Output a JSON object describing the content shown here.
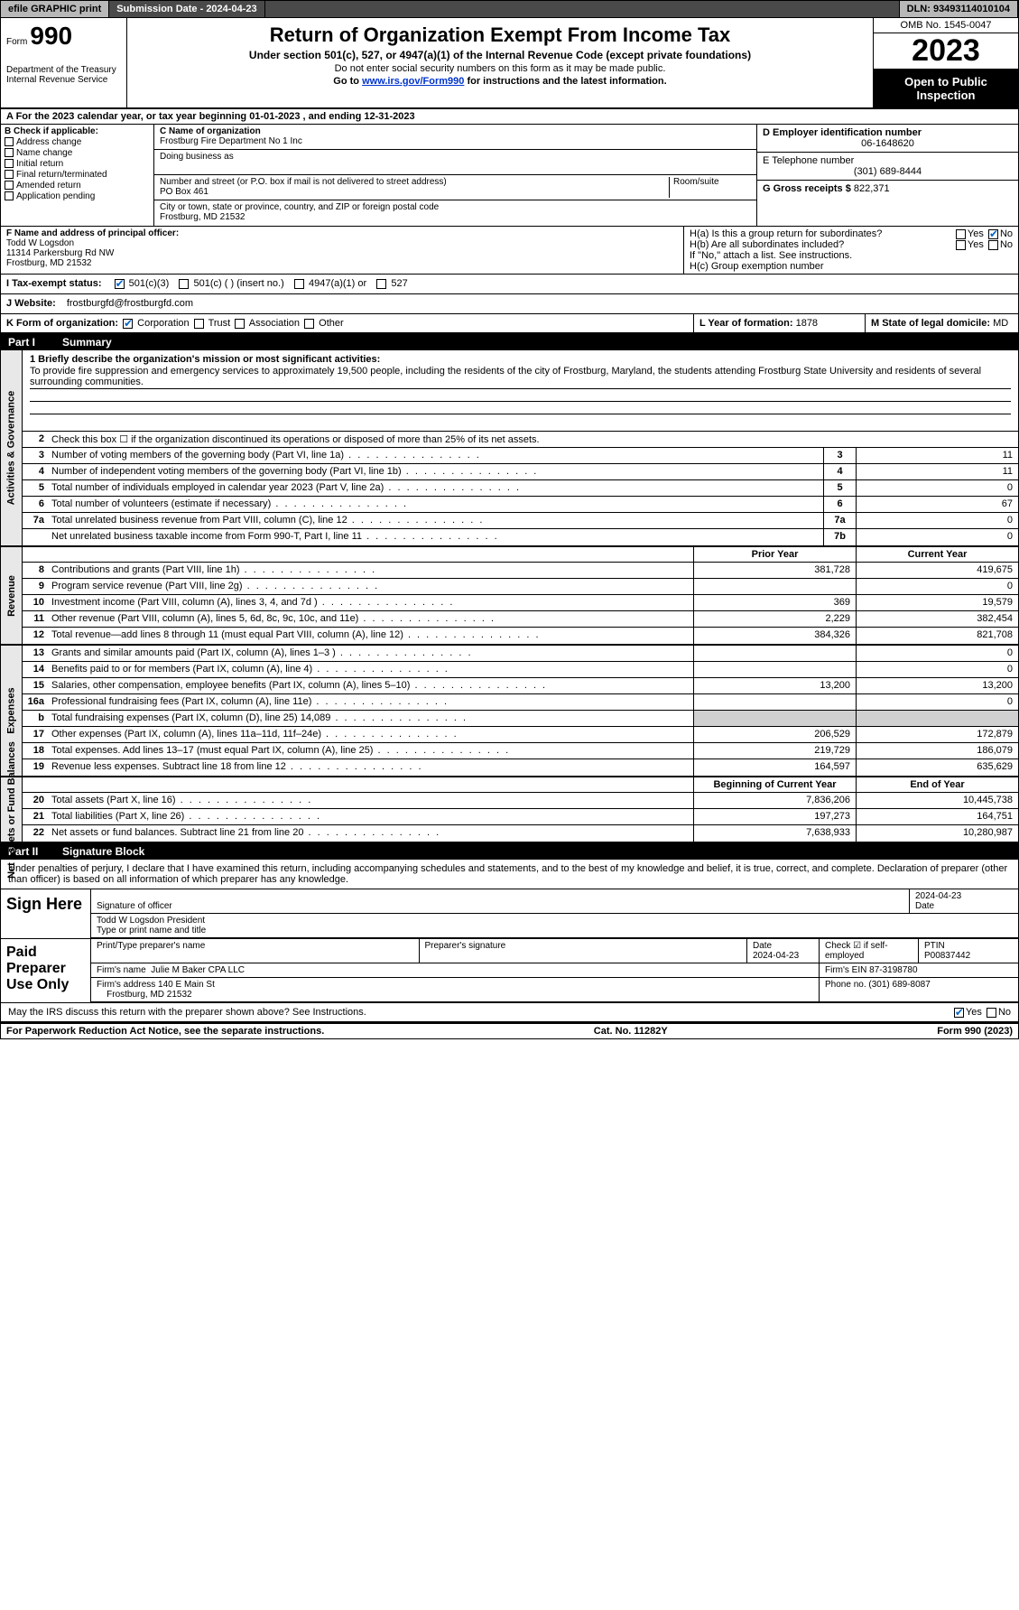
{
  "topbar": {
    "efile": "efile GRAPHIC print",
    "submission": "Submission Date - 2024-04-23",
    "dln": "DLN: 93493114010104"
  },
  "header": {
    "form_label": "Form",
    "form_num": "990",
    "dept": "Department of the Treasury\nInternal Revenue Service",
    "title": "Return of Organization Exempt From Income Tax",
    "sub1": "Under section 501(c), 527, or 4947(a)(1) of the Internal Revenue Code (except private foundations)",
    "sub2": "Do not enter social security numbers on this form as it may be made public.",
    "sub3_pre": "Go to ",
    "sub3_link": "www.irs.gov/Form990",
    "sub3_post": " for instructions and the latest information.",
    "omb": "OMB No. 1545-0047",
    "year": "2023",
    "open": "Open to Public Inspection"
  },
  "row_a": "A For the 2023 calendar year, or tax year beginning 01-01-2023    , and ending 12-31-2023",
  "col_b": {
    "title": "B Check if applicable:",
    "items": [
      "Address change",
      "Name change",
      "Initial return",
      "Final return/terminated",
      "Amended return",
      "Application pending"
    ]
  },
  "org": {
    "c_label": "C Name of organization",
    "name": "Frostburg Fire Department No 1 Inc",
    "dba_label": "Doing business as",
    "dba": "",
    "addr_label": "Number and street (or P.O. box if mail is not delivered to street address)",
    "addr": "PO Box 461",
    "room_label": "Room/suite",
    "city_label": "City or town, state or province, country, and ZIP or foreign postal code",
    "city": "Frostburg, MD  21532"
  },
  "right_boxes": {
    "d_label": "D Employer identification number",
    "ein": "06-1648620",
    "e_label": "E Telephone number",
    "phone": "(301) 689-8444",
    "g_label": "G Gross receipts $",
    "gross": "822,371"
  },
  "officer": {
    "f_label": "F Name and address of principal officer:",
    "name": "Todd W Logsdon",
    "addr1": "11314 Parkersburg Rd NW",
    "addr2": "Frostburg, MD  21532"
  },
  "h_section": {
    "ha": "H(a) Is this a group return for subordinates?",
    "hb": "H(b) Are all subordinates included?",
    "hb_note": "If \"No,\" attach a list. See instructions.",
    "hc": "H(c) Group exemption number",
    "yes": "Yes",
    "no": "No"
  },
  "status": {
    "i_label": "I  Tax-exempt status:",
    "opts": [
      "501(c)(3)",
      "501(c) (  ) (insert no.)",
      "4947(a)(1) or",
      "527"
    ],
    "j_label": "J  Website:",
    "website": "frostburgfd@frostburgfd.com"
  },
  "k_row": {
    "k_label": "K Form of organization:",
    "opts": [
      "Corporation",
      "Trust",
      "Association",
      "Other"
    ],
    "l_label": "L Year of formation:",
    "l_val": "1878",
    "m_label": "M State of legal domicile:",
    "m_val": "MD"
  },
  "part1": {
    "title": "Part I",
    "name": "Summary",
    "q1_label": "1  Briefly describe the organization's mission or most significant activities:",
    "mission": "To provide fire suppression and emergency services to approximately 19,500 people, including the residents of the city of Frostburg, Maryland, the students attending Frostburg State University and residents of several surrounding communities.",
    "q2": "Check this box ☐ if the organization discontinued its operations or disposed of more than 25% of its net assets.",
    "sections": {
      "activities": "Activities & Governance",
      "revenue": "Revenue",
      "expenses": "Expenses",
      "net": "Net Assets or Fund Balances"
    },
    "lines_act": [
      {
        "n": "3",
        "d": "Number of voting members of the governing body (Part VI, line 1a)",
        "box": "3",
        "v": "11"
      },
      {
        "n": "4",
        "d": "Number of independent voting members of the governing body (Part VI, line 1b)",
        "box": "4",
        "v": "11"
      },
      {
        "n": "5",
        "d": "Total number of individuals employed in calendar year 2023 (Part V, line 2a)",
        "box": "5",
        "v": "0"
      },
      {
        "n": "6",
        "d": "Total number of volunteers (estimate if necessary)",
        "box": "6",
        "v": "67"
      },
      {
        "n": "7a",
        "d": "Total unrelated business revenue from Part VIII, column (C), line 12",
        "box": "7a",
        "v": "0"
      },
      {
        "n": "",
        "d": "Net unrelated business taxable income from Form 990-T, Part I, line 11",
        "box": "7b",
        "v": "0"
      }
    ],
    "col_hdrs": {
      "prior": "Prior Year",
      "current": "Current Year",
      "begin": "Beginning of Current Year",
      "end": "End of Year"
    },
    "lines_rev": [
      {
        "n": "8",
        "d": "Contributions and grants (Part VIII, line 1h)",
        "p": "381,728",
        "c": "419,675"
      },
      {
        "n": "9",
        "d": "Program service revenue (Part VIII, line 2g)",
        "p": "",
        "c": "0"
      },
      {
        "n": "10",
        "d": "Investment income (Part VIII, column (A), lines 3, 4, and 7d )",
        "p": "369",
        "c": "19,579"
      },
      {
        "n": "11",
        "d": "Other revenue (Part VIII, column (A), lines 5, 6d, 8c, 9c, 10c, and 11e)",
        "p": "2,229",
        "c": "382,454"
      },
      {
        "n": "12",
        "d": "Total revenue—add lines 8 through 11 (must equal Part VIII, column (A), line 12)",
        "p": "384,326",
        "c": "821,708"
      }
    ],
    "lines_exp": [
      {
        "n": "13",
        "d": "Grants and similar amounts paid (Part IX, column (A), lines 1–3 )",
        "p": "",
        "c": "0"
      },
      {
        "n": "14",
        "d": "Benefits paid to or for members (Part IX, column (A), line 4)",
        "p": "",
        "c": "0"
      },
      {
        "n": "15",
        "d": "Salaries, other compensation, employee benefits (Part IX, column (A), lines 5–10)",
        "p": "13,200",
        "c": "13,200"
      },
      {
        "n": "16a",
        "d": "Professional fundraising fees (Part IX, column (A), line 11e)",
        "p": "",
        "c": "0"
      },
      {
        "n": "b",
        "d": "Total fundraising expenses (Part IX, column (D), line 25) 14,089",
        "p": "gray",
        "c": "gray"
      },
      {
        "n": "17",
        "d": "Other expenses (Part IX, column (A), lines 11a–11d, 11f–24e)",
        "p": "206,529",
        "c": "172,879"
      },
      {
        "n": "18",
        "d": "Total expenses. Add lines 13–17 (must equal Part IX, column (A), line 25)",
        "p": "219,729",
        "c": "186,079"
      },
      {
        "n": "19",
        "d": "Revenue less expenses. Subtract line 18 from line 12",
        "p": "164,597",
        "c": "635,629"
      }
    ],
    "lines_net": [
      {
        "n": "20",
        "d": "Total assets (Part X, line 16)",
        "p": "7,836,206",
        "c": "10,445,738"
      },
      {
        "n": "21",
        "d": "Total liabilities (Part X, line 26)",
        "p": "197,273",
        "c": "164,751"
      },
      {
        "n": "22",
        "d": "Net assets or fund balances. Subtract line 21 from line 20",
        "p": "7,638,933",
        "c": "10,280,987"
      }
    ]
  },
  "part2": {
    "title": "Part II",
    "name": "Signature Block",
    "declaration": "Under penalties of perjury, I declare that I have examined this return, including accompanying schedules and statements, and to the best of my knowledge and belief, it is true, correct, and complete. Declaration of preparer (other than officer) is based on all information of which preparer has any knowledge.",
    "sign_here": "Sign Here",
    "sig_officer": "Signature of officer",
    "sig_date": "2024-04-23",
    "officer_name": "Todd W Logsdon  President",
    "type_name": "Type or print name and title",
    "date_lbl": "Date",
    "paid_prep": "Paid Preparer Use Only",
    "prep_name_lbl": "Print/Type preparer's name",
    "prep_sig_lbl": "Preparer's signature",
    "prep_date": "2024-04-23",
    "check_if": "Check ☑ if self-employed",
    "ptin_lbl": "PTIN",
    "ptin": "P00837442",
    "firm_name_lbl": "Firm's name",
    "firm_name": "Julie M Baker CPA LLC",
    "firm_ein_lbl": "Firm's EIN",
    "firm_ein": "87-3198780",
    "firm_addr_lbl": "Firm's address",
    "firm_addr": "140 E Main St",
    "firm_city": "Frostburg, MD  21532",
    "phone_lbl": "Phone no.",
    "phone": "(301) 689-8087",
    "discuss": "May the IRS discuss this return with the preparer shown above? See Instructions."
  },
  "footer": {
    "left": "For Paperwork Reduction Act Notice, see the separate instructions.",
    "mid": "Cat. No. 11282Y",
    "right": "Form 990 (2023)"
  }
}
